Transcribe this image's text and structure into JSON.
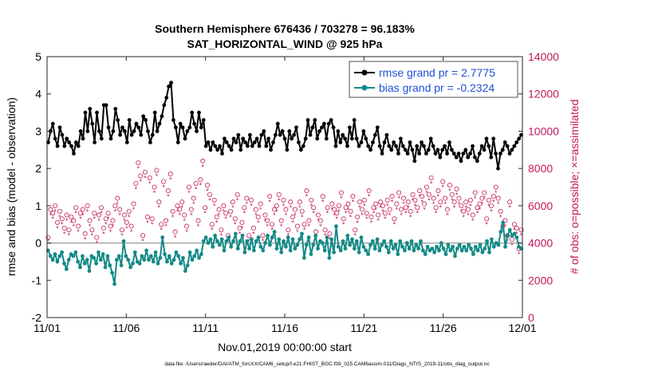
{
  "chart_data": {
    "type": "line",
    "title_line1": "Southern Hemisphere 676436 / 703278 = 96.183%",
    "title_line2": "SAT_HORIZONTAL_WIND @ 925 hPa",
    "xlabel": "Nov.01,2019 00:00:00 start",
    "ylabel_left": "rmse and bias (model - observation)",
    "ylabel_right": "# of obs: o=possible; ×=assimilated",
    "footer": "data file: /Users/raeder/DAI/ATM_forcXX/CAM6_setup/f.e21.FHIST_BGC.f09_025.CAM6assim.011/Diags_NTrS_2019-11/obs_diag_output.nc",
    "x_ticks": [
      "11/01",
      "11/06",
      "11/11",
      "11/16",
      "11/21",
      "11/26",
      "12/01"
    ],
    "x_range_days": [
      0,
      30
    ],
    "y_left_ticks": [
      "-2",
      "-1",
      "0",
      "1",
      "2",
      "3",
      "4",
      "5"
    ],
    "y_left_range": [
      -2,
      5
    ],
    "y_right_ticks": [
      "0",
      "2000",
      "4000",
      "6000",
      "8000",
      "10000",
      "12000",
      "14000"
    ],
    "y_right_range": [
      0,
      14000
    ],
    "colors": {
      "rmse": "#000000",
      "bias": "#138a86",
      "obs": "#c2185b",
      "zero": "#a6a6a6",
      "legend_text": "#1f4fd6"
    },
    "legend": {
      "rmse_label": "rmse grand pr = 2.7775",
      "bias_label": "bias grand pr = -0.2324"
    },
    "series": [
      {
        "name": "rmse",
        "axis": "left",
        "values": [
          2.7,
          3.0,
          3.2,
          2.8,
          2.6,
          3.1,
          2.9,
          2.6,
          2.8,
          2.7,
          2.6,
          2.4,
          2.7,
          2.6,
          3.0,
          2.8,
          3.5,
          3.0,
          3.6,
          3.2,
          2.7,
          3.5,
          3.0,
          2.8,
          3.7,
          3.7,
          3.1,
          2.8,
          3.0,
          3.6,
          3.3,
          2.9,
          3.1,
          3.0,
          2.7,
          3.3,
          2.9,
          3.0,
          3.2,
          3.1,
          2.9,
          3.4,
          3.3,
          3.0,
          2.7,
          2.9,
          3.5,
          3.0,
          3.2,
          3.4,
          3.7,
          3.9,
          4.2,
          4.3,
          3.3,
          3.1,
          2.7,
          3.2,
          3.1,
          2.8,
          3.0,
          3.1,
          3.5,
          3.2,
          3.0,
          3.5,
          3.1,
          3.3,
          2.6,
          2.7,
          2.5,
          2.7,
          2.6,
          2.5,
          2.6,
          2.4,
          2.8,
          2.7,
          2.6,
          2.5,
          2.8,
          2.7,
          2.9,
          2.5,
          2.8,
          2.7,
          2.6,
          2.9,
          2.6,
          2.7,
          2.8,
          2.6,
          2.9,
          3.0,
          2.6,
          2.8,
          2.5,
          2.7,
          2.9,
          3.2,
          2.9,
          3.0,
          2.8,
          2.5,
          3.0,
          2.8,
          2.9,
          3.1,
          2.7,
          2.5,
          2.6,
          2.8,
          3.3,
          2.9,
          3.1,
          3.3,
          2.8,
          3.0,
          3.1,
          3.2,
          2.8,
          3.2,
          3.3,
          3.1,
          2.6,
          3.0,
          2.7,
          2.9,
          2.8,
          2.6,
          3.1,
          2.8,
          3.3,
          2.8,
          2.6,
          2.7,
          3.0,
          2.8,
          2.6,
          2.5,
          2.7,
          2.9,
          3.1,
          2.6,
          2.4,
          2.7,
          2.9,
          2.6,
          2.5,
          2.7,
          2.6,
          2.4,
          2.8,
          2.6,
          2.5,
          2.4,
          2.7,
          2.5,
          2.2,
          2.6,
          2.4,
          2.7,
          2.6,
          2.4,
          2.5,
          2.8,
          2.6,
          2.4,
          2.5,
          2.3,
          2.5,
          2.6,
          2.4,
          2.7,
          2.5,
          2.4,
          2.3,
          2.4,
          2.2,
          2.4,
          2.5,
          2.3,
          2.4,
          2.6,
          2.3,
          2.2,
          2.4,
          2.6,
          2.5,
          2.8,
          2.6,
          2.3,
          2.8,
          2.4,
          2.0,
          2.4,
          2.5,
          2.7,
          2.6,
          2.4,
          2.5,
          2.6,
          2.7,
          2.8,
          2.9
        ],
        "marker": "filled-circle"
      },
      {
        "name": "bias",
        "axis": "left",
        "values": [
          -0.2,
          -0.35,
          -0.45,
          -0.3,
          -0.5,
          -0.35,
          -0.25,
          -0.55,
          -0.7,
          -0.45,
          -0.3,
          -0.35,
          -0.25,
          -0.5,
          -0.65,
          -0.35,
          -0.55,
          -0.45,
          -0.75,
          -0.35,
          -0.4,
          -0.55,
          -0.25,
          -0.45,
          -0.3,
          -0.65,
          -0.35,
          -0.6,
          -0.8,
          -1.1,
          -0.45,
          -0.35,
          -0.6,
          0.05,
          -0.35,
          -0.45,
          -0.65,
          -0.55,
          -0.25,
          -0.5,
          -0.55,
          -0.35,
          -0.45,
          -0.2,
          -0.45,
          -0.35,
          -0.5,
          -0.25,
          -0.55,
          -0.4,
          0.15,
          -0.3,
          -0.5,
          -0.35,
          -0.55,
          -0.45,
          -0.25,
          -0.35,
          -0.55,
          -0.4,
          -0.75,
          -0.6,
          -0.25,
          -0.45,
          -0.35,
          -0.2,
          -0.4,
          -0.3,
          0.05,
          0.15,
          0.0,
          0.1,
          -0.1,
          0.2,
          0.05,
          -0.05,
          0.1,
          -0.2,
          0.05,
          0.15,
          -0.1,
          0.05,
          0.25,
          -0.15,
          0.05,
          0.2,
          -0.25,
          0.05,
          -0.15,
          0.1,
          -0.2,
          0.05,
          0.15,
          -0.1,
          -0.2,
          0.0,
          0.2,
          -0.05,
          0.15,
          0.3,
          -0.15,
          0.1,
          -0.25,
          0.05,
          -0.1,
          0.15,
          -0.2,
          0.1,
          -0.15,
          -0.05,
          0.1,
          0.25,
          -0.4,
          -0.05,
          0.15,
          -0.3,
          -0.05,
          0.2,
          -0.15,
          0.05,
          0.0,
          -0.2,
          0.15,
          -0.4,
          0.1,
          -0.25,
          0.45,
          -0.1,
          -0.2,
          0.05,
          -0.15,
          0.2,
          -0.05,
          0.1,
          -0.15,
          0.05,
          -0.25,
          0.15,
          -0.1,
          -0.2,
          -0.3,
          -0.05,
          0.05,
          -0.15,
          0.1,
          -0.2,
          -0.05,
          0.05,
          -0.1,
          -0.25,
          0.05,
          -0.15,
          -0.05,
          -0.3,
          0.05,
          -0.1,
          -0.2,
          0.0,
          -0.15,
          0.05,
          -0.2,
          -0.05,
          -0.15,
          0.05,
          -0.2,
          -0.3,
          -0.1,
          -0.2,
          -0.15,
          -0.25,
          -0.1,
          -0.2,
          0.0,
          -0.15,
          -0.3,
          -0.05,
          -0.2,
          -0.1,
          -0.35,
          -0.15,
          -0.05,
          -0.2,
          -0.1,
          -0.2,
          -0.05,
          -0.15,
          -0.3,
          -0.1,
          -0.2,
          -0.05,
          -0.25,
          -0.15,
          0.05,
          -0.25,
          0.1,
          -0.1,
          0.0,
          -0.05,
          0.3,
          0.55,
          -0.1,
          0.2,
          0.35,
          0.2,
          0.25,
          0.15,
          -0.1,
          -0.15
        ],
        "marker": "filled-circle"
      },
      {
        "name": "obs_possible",
        "axis": "right",
        "values": [
          4300,
          5800,
          5600,
          6000,
          5100,
          5700,
          5300,
          4800,
          5500,
          4700,
          5400,
          5200,
          5900,
          4900,
          5600,
          5800,
          4500,
          6000,
          5200,
          4700,
          5600,
          4300,
          5500,
          5900,
          4800,
          5300,
          5600,
          4900,
          5200,
          6000,
          6400,
          5800,
          4700,
          5500,
          5100,
          5700,
          4900,
          6100,
          7200,
          8300,
          7600,
          4400,
          7800,
          5400,
          7500,
          5300,
          7000,
          7900,
          6200,
          5000,
          7300,
          5200,
          6800,
          7700,
          5700,
          4600,
          6000,
          5800,
          6200,
          5500,
          4900,
          7000,
          5800,
          6400,
          7200,
          5200,
          7400,
          8400,
          5900,
          7100,
          6600,
          5000,
          6300,
          5400,
          5800,
          4700,
          6000,
          5600,
          4400,
          5700,
          6200,
          5300,
          6600,
          4800,
          5100,
          5900,
          6400,
          4400,
          6300,
          4800,
          5800,
          5400,
          6100,
          4400,
          5500,
          5200,
          6500,
          5000,
          5800,
          6000,
          6600,
          5200,
          6300,
          5800,
          4700,
          6200,
          5400,
          5800,
          4900,
          6200,
          5700,
          5000,
          6800,
          5200,
          6300,
          5900,
          4600,
          5500,
          5200,
          6500,
          4700,
          5900,
          4500,
          6100,
          5800,
          5600,
          6000,
          6700,
          5300,
          5900,
          6100,
          5700,
          6500,
          4700,
          5400,
          6200,
          5800,
          6300,
          5600,
          6800,
          5400,
          5900,
          6100,
          5500,
          6200,
          6000,
          5600,
          6300,
          5800,
          6500,
          5300,
          6100,
          6700,
          5800,
          6400,
          5900,
          6200,
          5700,
          6600,
          6300,
          5900,
          6800,
          6500,
          6100,
          7000,
          6600,
          7500,
          6400,
          5900,
          6800,
          6200,
          7300,
          6400,
          5800,
          7100,
          6600,
          6200,
          6900,
          6400,
          6000,
          5700,
          6200,
          5800,
          6300,
          5500,
          6700,
          5900,
          6100,
          6400,
          6700,
          5300,
          6300,
          6000,
          6500,
          7000,
          6400,
          5700,
          4900,
          5200,
          4400,
          6200,
          4200,
          5000,
          4800,
          3700,
          4700
        ],
        "marker": "circle"
      },
      {
        "name": "obs_assimilated",
        "axis": "right",
        "values": [
          4100,
          5500,
          5300,
          5700,
          4800,
          5400,
          5000,
          4500,
          5200,
          4400,
          5100,
          4900,
          5600,
          4600,
          5300,
          5500,
          4200,
          5700,
          4900,
          4400,
          5300,
          4000,
          5200,
          5600,
          4500,
          5000,
          5300,
          4600,
          4900,
          5700,
          6100,
          5500,
          4400,
          5200,
          4800,
          5400,
          4600,
          5800,
          6900,
          8000,
          7300,
          4100,
          7500,
          5100,
          7200,
          5000,
          6700,
          7600,
          5900,
          4700,
          7000,
          4900,
          6500,
          7400,
          5400,
          4300,
          5700,
          5500,
          5900,
          5200,
          4600,
          6700,
          5500,
          6100,
          6900,
          4900,
          7100,
          8100,
          5600,
          6800,
          6300,
          4700,
          6000,
          5100,
          5500,
          4400,
          5700,
          5300,
          4100,
          5400,
          5900,
          5000,
          6300,
          4500,
          4800,
          5600,
          6100,
          4100,
          6000,
          4500,
          5500,
          5100,
          5800,
          4100,
          5200,
          4900,
          6200,
          4700,
          5500,
          5700,
          6300,
          4900,
          6000,
          5500,
          4400,
          5900,
          5100,
          5500,
          4600,
          5900,
          5400,
          4700,
          6500,
          4900,
          6000,
          5600,
          4300,
          5200,
          4900,
          6200,
          4400,
          5600,
          4200,
          5800,
          5500,
          5300,
          5700,
          6400,
          5000,
          5600,
          5800,
          5400,
          6200,
          4400,
          5100,
          5900,
          5500,
          6000,
          5300,
          6500,
          5100,
          5600,
          5800,
          5200,
          5900,
          5700,
          5300,
          6000,
          5500,
          6200,
          5000,
          5800,
          6400,
          5500,
          6100,
          5600,
          5900,
          5400,
          6300,
          6000,
          5600,
          6500,
          6200,
          5800,
          6700,
          6300,
          7200,
          6100,
          5600,
          6500,
          5900,
          7000,
          6100,
          5500,
          6800,
          6300,
          5900,
          6600,
          6100,
          5700,
          5400,
          5900,
          5500,
          6000,
          5200,
          6400,
          5600,
          5800,
          6100,
          6400,
          5000,
          6000,
          5700,
          6200,
          6700,
          6100,
          5400,
          4600,
          4900,
          4100,
          5900,
          3900,
          4700,
          4500,
          3400,
          4400
        ],
        "marker": "star"
      }
    ]
  }
}
